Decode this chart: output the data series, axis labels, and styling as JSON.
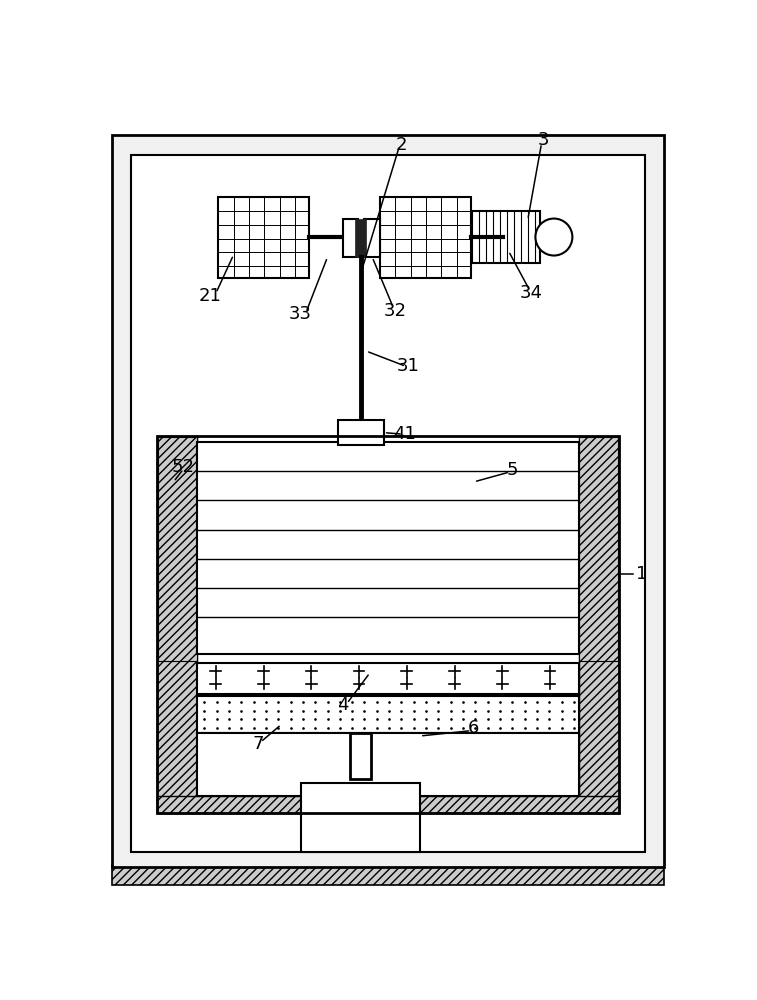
{
  "bg_color": "#ffffff",
  "figsize": [
    7.57,
    10.0
  ],
  "dpi": 100
}
